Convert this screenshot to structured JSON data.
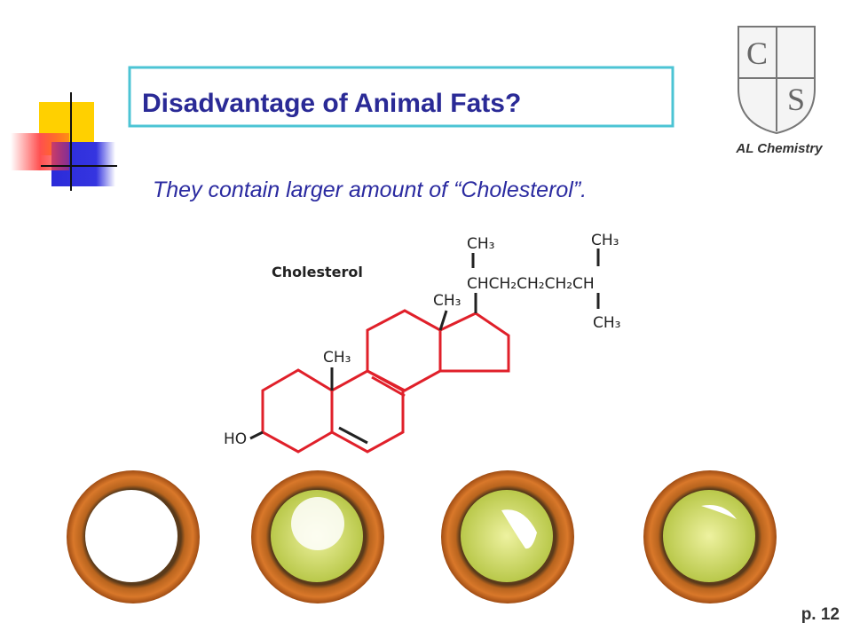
{
  "header": {
    "title": "Disadvantage of Animal Fats?",
    "subtitle": "They contain larger amount of “Cholesterol”."
  },
  "logo": {
    "caption": "AL Chemistry"
  },
  "diagram": {
    "title": "Cholesterol",
    "labels": [
      "CH₃",
      "CHCH₂CH₂CH₂CH",
      "CH₃",
      "CH₃",
      "CH₃",
      "CH₃",
      "HO"
    ]
  },
  "footer": {
    "page": "p. 12"
  }
}
